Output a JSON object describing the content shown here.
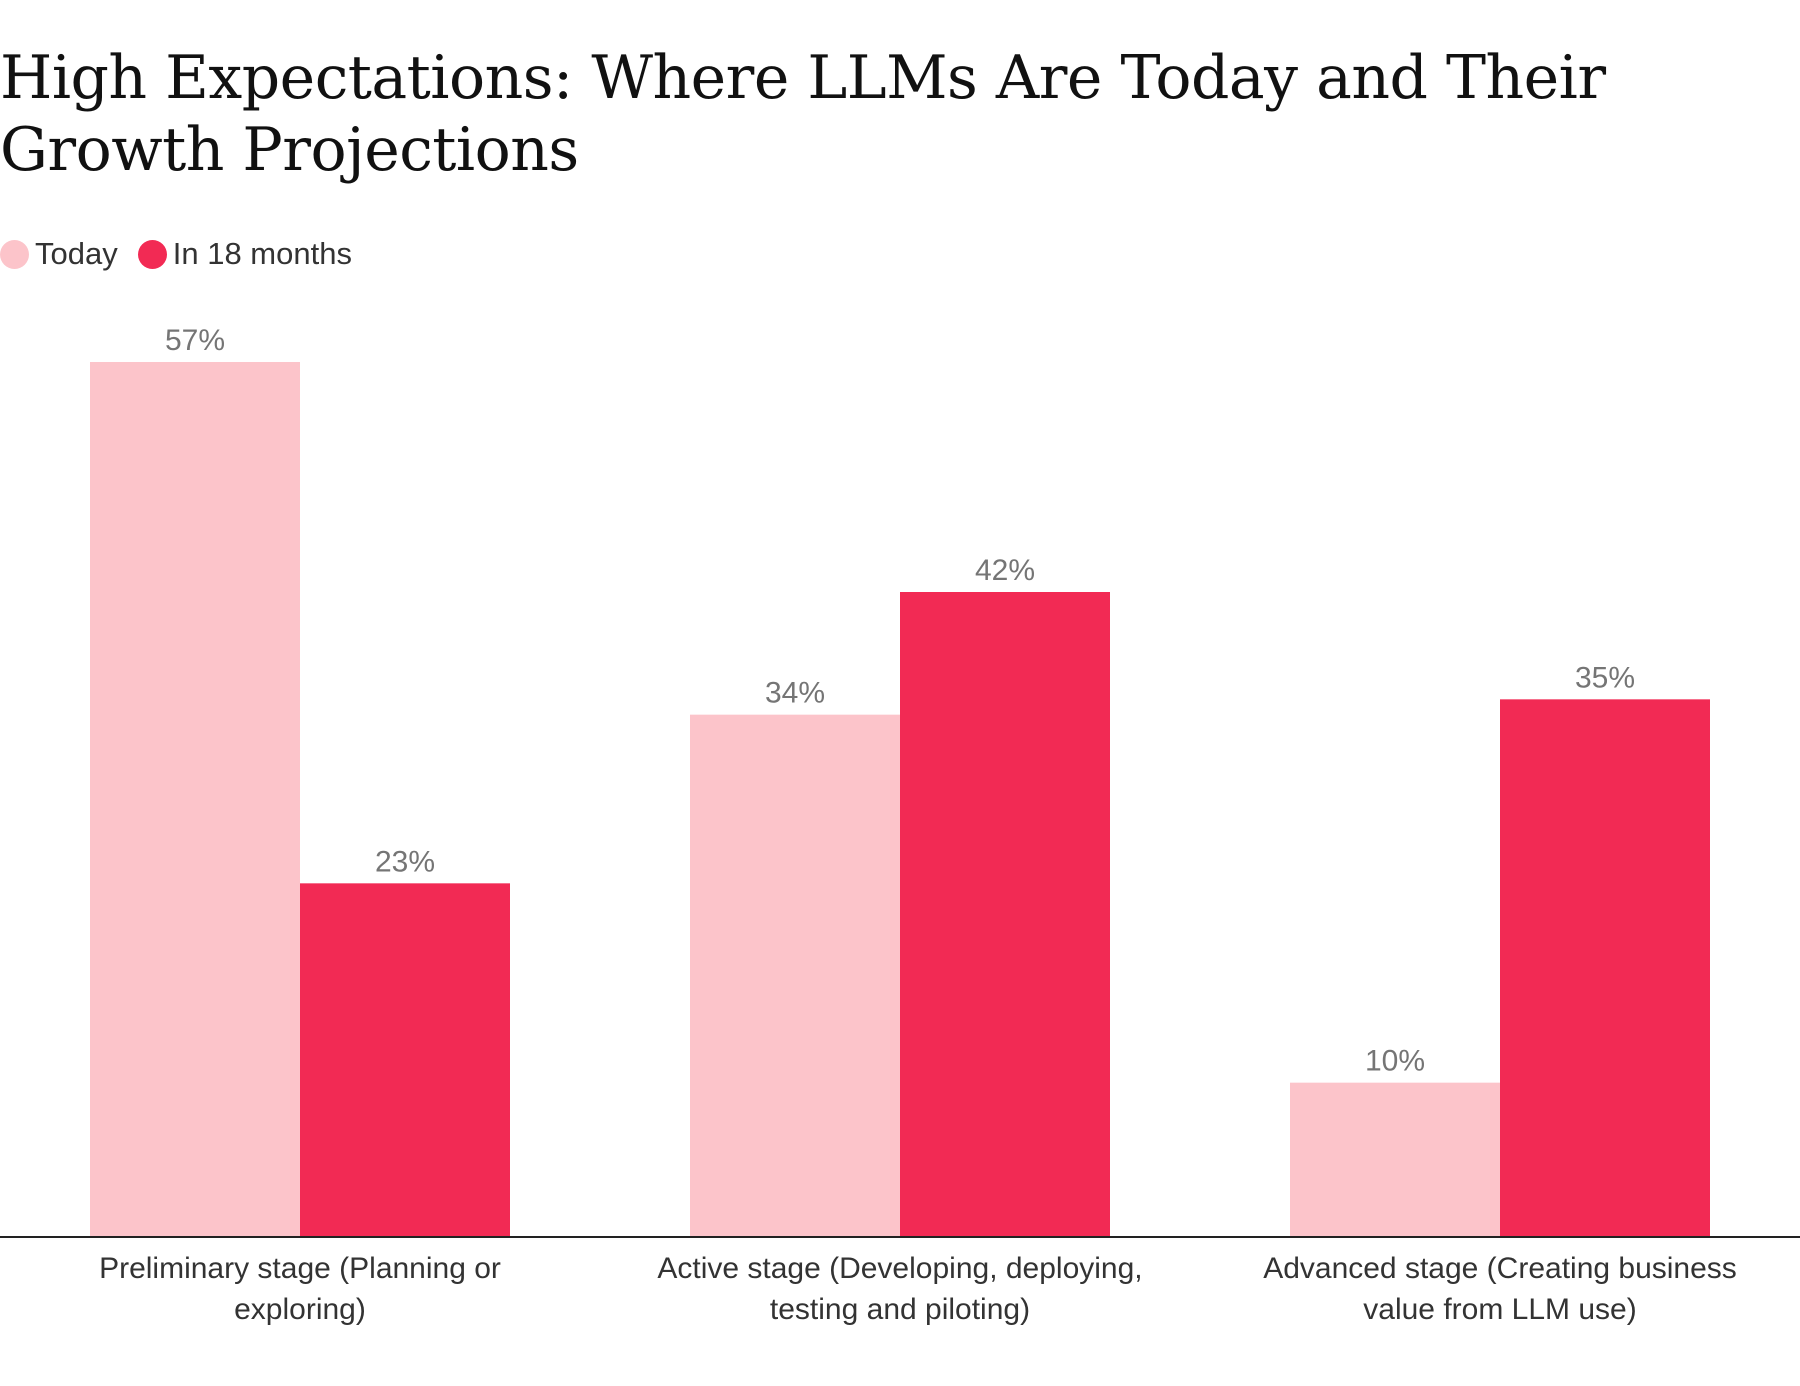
{
  "title": "High Expectations: Where LLMs Are Today and Their Growth Projections",
  "legend": [
    {
      "label": "Today",
      "color": "#fcc4ca"
    },
    {
      "label": "In 18 months",
      "color": "#f22a54"
    }
  ],
  "chart_data": {
    "type": "bar",
    "title": "High Expectations: Where LLMs Are Today and Their Growth Projections",
    "xlabel": "",
    "ylabel": "",
    "ylim": [
      0,
      57
    ],
    "grid": false,
    "legend_position": "top-left",
    "categories": [
      [
        "Preliminary stage (Planning or",
        "exploring)"
      ],
      [
        "Active stage (Developing, deploying,",
        "testing and piloting)"
      ],
      [
        "Advanced stage (Creating business",
        "value from LLM use)"
      ]
    ],
    "series": [
      {
        "name": "Today",
        "color": "#fcc4ca",
        "values": [
          57,
          34,
          10
        ],
        "labels": [
          "57%",
          "34%",
          "10%"
        ]
      },
      {
        "name": "In 18 months",
        "color": "#f22a54",
        "values": [
          23,
          42,
          35
        ],
        "labels": [
          "23%",
          "42%",
          "35%"
        ]
      }
    ]
  }
}
